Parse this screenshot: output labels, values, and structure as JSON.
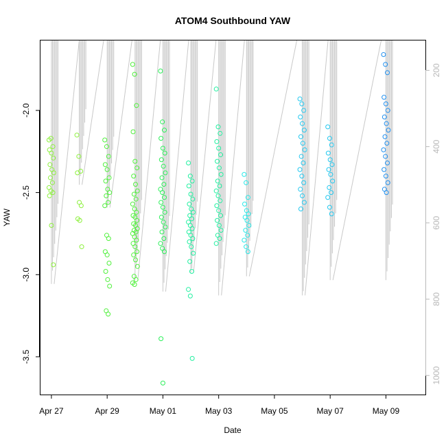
{
  "chart_data": {
    "type": "scatter",
    "title": "ATOM4 Southbound YAW",
    "xlabel": "Date",
    "ylabel": "YAW",
    "x_ticks": [
      "Apr 27",
      "Apr 29",
      "May 01",
      "May 03",
      "May 05",
      "May 07",
      "May 09"
    ],
    "x_tick_dates": [
      "2021-04-27",
      "2021-04-29",
      "2021-05-01",
      "2021-05-03",
      "2021-05-05",
      "2021-05-07",
      "2021-05-09"
    ],
    "xlim": [
      "2021-04-26T14:00",
      "2021-05-10T10:00"
    ],
    "y_ticks": [
      "-2.0",
      "-2.5",
      "-3.0",
      "-3.5"
    ],
    "ylim": [
      -3.73,
      -1.57
    ],
    "y2_ticks": [
      "200",
      "400",
      "600",
      "800",
      "1000"
    ],
    "y2lim": [
      1050,
      120
    ],
    "grid": false,
    "legend": "none",
    "colors": {
      "axis": "#000000",
      "secondary_axis": "#b8b8b8",
      "secondary_series": "#c8c8c8",
      "point_palette": [
        "#8cf03c",
        "#50f03c",
        "#2cf05a",
        "#20f0a0",
        "#28e8e8",
        "#22c8f0",
        "#2090f0"
      ]
    },
    "series": [
      {
        "points": [
          {
            "x": "2021-04-27T00:00",
            "y": [
              -2.18,
              -2.17,
              -2.22,
              -2.24,
              -2.26,
              -2.29,
              -2.33,
              -2.36,
              -2.38,
              -2.41,
              -2.44,
              -2.47,
              -2.49,
              -2.5,
              -2.52,
              -2.7,
              -2.94
            ]
          },
          {
            "x": "2021-04-28T00:00",
            "y": [
              -2.15,
              -2.28,
              -2.37,
              -2.38,
              -2.56,
              -2.58,
              -2.66,
              -2.67,
              -2.83
            ]
          },
          {
            "x": "2021-04-29T00:00",
            "y": [
              -2.18,
              -2.22,
              -2.28,
              -2.33,
              -2.36,
              -2.41,
              -2.43,
              -2.48,
              -2.5,
              -2.52,
              -2.56,
              -2.58,
              -2.76,
              -2.78,
              -2.86,
              -2.88,
              -2.93,
              -2.98,
              -3.03,
              -3.07,
              -3.22,
              -3.24
            ]
          },
          {
            "x": "2021-04-30T00:00",
            "y": [
              -1.72,
              -1.78,
              -1.97,
              -2.13,
              -2.31,
              -2.35,
              -2.4,
              -2.45,
              -2.49,
              -2.51,
              -2.54,
              -2.57,
              -2.6,
              -2.62,
              -2.64,
              -2.65,
              -2.67,
              -2.69,
              -2.7,
              -2.72,
              -2.73,
              -2.74,
              -2.75,
              -2.77,
              -2.79,
              -2.81,
              -2.83,
              -2.86,
              -2.88,
              -2.91,
              -2.95,
              -3.01,
              -3.03,
              -3.05,
              -3.06
            ]
          },
          {
            "x": "2021-05-01T00:00",
            "y": [
              -1.76,
              -2.07,
              -2.12,
              -2.17,
              -2.23,
              -2.26,
              -2.3,
              -2.34,
              -2.38,
              -2.41,
              -2.45,
              -2.48,
              -2.5,
              -2.53,
              -2.56,
              -2.59,
              -2.62,
              -2.65,
              -2.68,
              -2.71,
              -2.74,
              -2.78,
              -2.81,
              -2.84,
              -2.86,
              -3.39,
              -3.66
            ]
          },
          {
            "x": "2021-05-02T00:00",
            "y": [
              -2.32,
              -2.4,
              -2.43,
              -2.46,
              -2.51,
              -2.54,
              -2.57,
              -2.6,
              -2.62,
              -2.64,
              -2.66,
              -2.68,
              -2.7,
              -2.72,
              -2.74,
              -2.76,
              -2.78,
              -2.8,
              -2.83,
              -2.87,
              -2.92,
              -2.98,
              -3.09,
              -3.13,
              -3.51
            ]
          },
          {
            "x": "2021-05-03T00:00",
            "y": [
              -1.87,
              -2.1,
              -2.14,
              -2.19,
              -2.23,
              -2.27,
              -2.31,
              -2.35,
              -2.39,
              -2.43,
              -2.46,
              -2.49,
              -2.52,
              -2.55,
              -2.58,
              -2.61,
              -2.64,
              -2.67,
              -2.7,
              -2.73,
              -2.76,
              -2.78,
              -2.81
            ]
          },
          {
            "x": "2021-05-04T00:00",
            "y": [
              -2.39,
              -2.44,
              -2.53,
              -2.57,
              -2.61,
              -2.63,
              -2.65,
              -2.67,
              -2.7,
              -2.73,
              -2.76,
              -2.79,
              -2.83,
              -2.86
            ]
          },
          {
            "x": "2021-05-06T00:00",
            "y": [
              -1.93,
              -1.96,
              -2.0,
              -2.04,
              -2.08,
              -2.12,
              -2.16,
              -2.2,
              -2.24,
              -2.28,
              -2.32,
              -2.36,
              -2.4,
              -2.44,
              -2.48,
              -2.52,
              -2.56,
              -2.6
            ]
          },
          {
            "x": "2021-05-07T00:00",
            "y": [
              -2.1,
              -2.17,
              -2.21,
              -2.26,
              -2.3,
              -2.33,
              -2.36,
              -2.39,
              -2.43,
              -2.47,
              -2.5,
              -2.53,
              -2.59,
              -2.63
            ]
          },
          {
            "x": "2021-05-09T00:00",
            "y": [
              -1.66,
              -1.72,
              -1.77,
              -1.92,
              -1.96,
              -2.0,
              -2.04,
              -2.08,
              -2.12,
              -2.16,
              -2.2,
              -2.24,
              -2.28,
              -2.32,
              -2.36,
              -2.4,
              -2.44,
              -2.48,
              -2.5
            ]
          }
        ]
      },
      {
        "axis": "right",
        "values": [
          {
            "x": "2021-04-27T00:00",
            "y": [
              40,
              760
            ],
            "from": "2021-04-27T00:00",
            "to": "2021-04-27T02:00"
          },
          {
            "x": "2021-04-28T00:00",
            "y": [
              120,
              500
            ]
          },
          {
            "x": "2021-04-29T00:00",
            "y": [
              60,
              560
            ]
          },
          {
            "x": "2021-04-30T00:00",
            "y": [
              60,
              750
            ]
          },
          {
            "x": "2021-05-01T00:00",
            "y": [
              50,
              780
            ]
          },
          {
            "x": "2021-05-02T00:00",
            "y": [
              60,
              730
            ]
          },
          {
            "x": "2021-05-03T00:00",
            "y": [
              50,
              790
            ]
          },
          {
            "x": "2021-05-04T00:00",
            "y": [
              60,
              740
            ]
          },
          {
            "x": "2021-05-06T00:00",
            "y": [
              50,
              790
            ]
          },
          {
            "x": "2021-05-07T00:00",
            "y": [
              60,
              750
            ]
          },
          {
            "x": "2021-05-09T00:00",
            "y": [
              60,
              750
            ]
          }
        ]
      }
    ]
  }
}
